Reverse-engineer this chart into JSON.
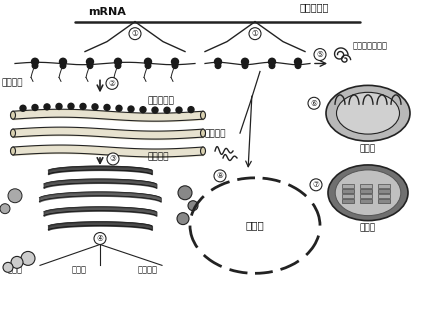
{
  "bg_color": "#ffffff",
  "mrna_label": "mRNA",
  "labels": {
    "xinhao_xulie_left": "信号序列",
    "xinhao_xulie_right": "信号序列",
    "cytoplasm_matrix": "细胞质基质",
    "cytosol_protein": "胞质可溶性蛋白",
    "rough_er": "粗面内质网",
    "golgi": "高尔基体",
    "lysosome": "溶酶体",
    "membrane_protein": "膜蛋白",
    "secretory_protein": "分泌蛋白",
    "nucleus": "细胞核",
    "mitochondria": "线粒体",
    "chloroplast": "叶绿体"
  },
  "text_color": "#111111",
  "line_color": "#222222"
}
